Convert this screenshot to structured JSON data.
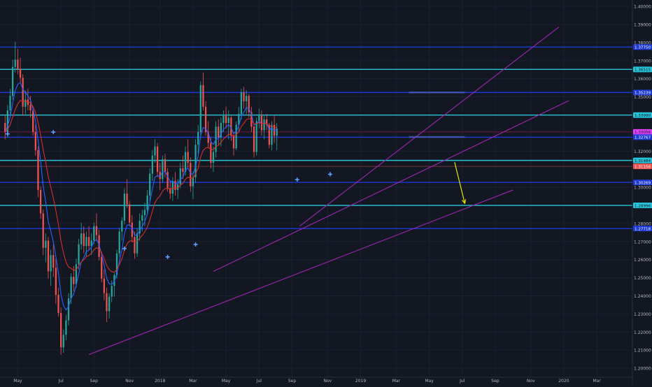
{
  "chart_data": {
    "type": "candlestick",
    "title": "",
    "xlabel": "",
    "ylabel": "",
    "colors": {
      "background": "#131722",
      "up": "#26a69a",
      "down": "#ef5350",
      "ema_fast": "#2962ff",
      "ema_slow": "#d32f2f",
      "support_cyan": "#26c6da",
      "level_blue": "#1e3ad6",
      "trendline": "#9c27b0",
      "arrow": "#e6e600",
      "axis_text": "#b2b5be",
      "label_text": "#131722"
    },
    "ylim": [
      1.195,
      1.4035
    ],
    "y_ticks": [
      "1.20000",
      "1.21000",
      "1.22000",
      "1.23000",
      "1.24000",
      "1.25000",
      "1.26000",
      "1.27000",
      "1.28000",
      "1.29000",
      "1.30000",
      "1.32000",
      "1.34000",
      "1.35000",
      "1.36000",
      "1.37000",
      "1.38000",
      "1.39000",
      "1.40000"
    ],
    "x_tick_labels": [
      "May",
      "Jul",
      "Sep",
      "Nov",
      "2018",
      "Mar",
      "May",
      "Jul",
      "Sep",
      "Nov",
      "2019",
      "Mar",
      "May",
      "Jul",
      "Sep",
      "Nov",
      "2020",
      "Mar"
    ],
    "x_tick_pos": [
      5,
      22,
      35,
      49,
      61,
      74,
      87,
      100,
      113,
      127,
      140,
      154,
      167,
      180,
      193,
      207,
      220,
      233
    ],
    "xlim": [
      -2,
      247
    ],
    "level_labels": [
      {
        "text": "1.37750",
        "value": 1.3775,
        "style": "blue"
      },
      {
        "text": "1.36515",
        "value": 1.36515,
        "style": "cyan"
      },
      {
        "text": "1.35239",
        "value": 1.35239,
        "style": "blue"
      },
      {
        "text": "1.33990",
        "value": 1.3399,
        "style": "cyan"
      },
      {
        "text": "1.33056",
        "value": 1.33056,
        "style": "magenta"
      },
      {
        "text": "1.32767",
        "value": 1.32767,
        "style": "blue"
      },
      {
        "text": "1.31484",
        "value": 1.31484,
        "style": "cyan"
      },
      {
        "text": "1.31156",
        "value": 1.31156,
        "style": "red"
      },
      {
        "text": "1.30269",
        "value": 1.30269,
        "style": "blue"
      },
      {
        "text": "1.28996",
        "value": 1.28996,
        "style": "cyan"
      },
      {
        "text": "1.27718",
        "value": 1.27718,
        "style": "blue"
      }
    ],
    "trendlines": [
      {
        "x1": 33,
        "y1": 1.2075,
        "x2": 200,
        "y2": 1.2985
      },
      {
        "x1": 82,
        "y1": 1.2535,
        "x2": 222,
        "y2": 1.3479
      },
      {
        "x1": 116,
        "y1": 1.2785,
        "x2": 218,
        "y2": 1.3885
      }
    ],
    "rect_zones": [
      {
        "x1": 159,
        "x2": 181,
        "y1": 1.3519,
        "y2": 1.3529
      },
      {
        "x1": 159,
        "x2": 181,
        "y1": 1.3273,
        "y2": 1.3283
      }
    ],
    "arrow": {
      "x1": 177,
      "y1": 1.3138,
      "x2": 181,
      "y2": 1.2911
    },
    "markers": [
      {
        "x": 1,
        "y": 1.3295
      },
      {
        "x": 19,
        "y": 1.3305
      },
      {
        "x": 47,
        "y": 1.2661
      },
      {
        "x": 64,
        "y": 1.2615
      },
      {
        "x": 75,
        "y": 1.2684
      },
      {
        "x": 115,
        "y": 1.3042
      },
      {
        "x": 128,
        "y": 1.3072
      }
    ],
    "ohlc": [
      [
        1.3355,
        1.3395,
        1.3265,
        1.3305
      ],
      [
        1.3305,
        1.3455,
        1.3275,
        1.3425
      ],
      [
        1.3425,
        1.3545,
        1.3405,
        1.3505
      ],
      [
        1.3505,
        1.3705,
        1.3485,
        1.3665
      ],
      [
        1.3665,
        1.3805,
        1.3635,
        1.3705
      ],
      [
        1.3705,
        1.3765,
        1.3625,
        1.3655
      ],
      [
        1.3655,
        1.3715,
        1.3575,
        1.3605
      ],
      [
        1.3605,
        1.3625,
        1.3395,
        1.3445
      ],
      [
        1.3445,
        1.3535,
        1.3405,
        1.3485
      ],
      [
        1.3485,
        1.3545,
        1.3425,
        1.3455
      ],
      [
        1.3455,
        1.3505,
        1.3385,
        1.3425
      ],
      [
        1.3425,
        1.3445,
        1.3285,
        1.3305
      ],
      [
        1.3305,
        1.3345,
        1.3175,
        1.3205
      ],
      [
        1.3205,
        1.3225,
        1.2945,
        1.2985
      ],
      [
        1.2985,
        1.3005,
        1.2825,
        1.2855
      ],
      [
        1.2855,
        1.2875,
        1.2625,
        1.2665
      ],
      [
        1.2665,
        1.2745,
        1.2585,
        1.2705
      ],
      [
        1.2705,
        1.2725,
        1.2495,
        1.2535
      ],
      [
        1.2535,
        1.2655,
        1.2455,
        1.2625
      ],
      [
        1.2625,
        1.2685,
        1.2505,
        1.2555
      ],
      [
        1.2555,
        1.2605,
        1.2355,
        1.2405
      ],
      [
        1.2405,
        1.2445,
        1.2285,
        1.2305
      ],
      [
        1.2305,
        1.2335,
        1.2075,
        1.2115
      ],
      [
        1.2115,
        1.2215,
        1.2085,
        1.2185
      ],
      [
        1.2185,
        1.2295,
        1.2155,
        1.2265
      ],
      [
        1.2265,
        1.2415,
        1.2235,
        1.2385
      ],
      [
        1.2385,
        1.2525,
        1.2355,
        1.2505
      ],
      [
        1.2505,
        1.2565,
        1.2425,
        1.2465
      ],
      [
        1.2465,
        1.2605,
        1.2445,
        1.2575
      ],
      [
        1.2575,
        1.2715,
        1.2545,
        1.2685
      ],
      [
        1.2685,
        1.2805,
        1.2655,
        1.2745
      ],
      [
        1.2745,
        1.2785,
        1.2635,
        1.2675
      ],
      [
        1.2675,
        1.2755,
        1.2615,
        1.2725
      ],
      [
        1.2725,
        1.2785,
        1.2655,
        1.2675
      ],
      [
        1.2675,
        1.2745,
        1.2625,
        1.2705
      ],
      [
        1.2705,
        1.2805,
        1.2685,
        1.2785
      ],
      [
        1.2785,
        1.2855,
        1.2705,
        1.2735
      ],
      [
        1.2735,
        1.2765,
        1.2595,
        1.2615
      ],
      [
        1.2615,
        1.2645,
        1.2475,
        1.2495
      ],
      [
        1.2495,
        1.2545,
        1.2375,
        1.2415
      ],
      [
        1.2415,
        1.2445,
        1.2255,
        1.2315
      ],
      [
        1.2315,
        1.2415,
        1.2275,
        1.2395
      ],
      [
        1.2395,
        1.2485,
        1.2365,
        1.2455
      ],
      [
        1.2455,
        1.2525,
        1.2395,
        1.2515
      ],
      [
        1.2515,
        1.2655,
        1.2495,
        1.2635
      ],
      [
        1.2635,
        1.2775,
        1.2615,
        1.2755
      ],
      [
        1.2755,
        1.2835,
        1.2705,
        1.2815
      ],
      [
        1.2815,
        1.2995,
        1.2795,
        1.2965
      ],
      [
        1.2965,
        1.3045,
        1.2885,
        1.2905
      ],
      [
        1.2905,
        1.2925,
        1.2785,
        1.2805
      ],
      [
        1.2805,
        1.2845,
        1.2695,
        1.2725
      ],
      [
        1.2725,
        1.2755,
        1.2605,
        1.2635
      ],
      [
        1.2635,
        1.2775,
        1.2615,
        1.2745
      ],
      [
        1.2745,
        1.2855,
        1.2705,
        1.2815
      ],
      [
        1.2815,
        1.2875,
        1.2755,
        1.2845
      ],
      [
        1.2845,
        1.2915,
        1.2785,
        1.2875
      ],
      [
        1.2875,
        1.2985,
        1.2845,
        1.2955
      ],
      [
        1.2955,
        1.3105,
        1.2925,
        1.3075
      ],
      [
        1.3075,
        1.3205,
        1.3035,
        1.3175
      ],
      [
        1.3175,
        1.3265,
        1.3135,
        1.3225
      ],
      [
        1.3225,
        1.3245,
        1.3055,
        1.3085
      ],
      [
        1.3085,
        1.3135,
        1.2985,
        1.3045
      ],
      [
        1.3045,
        1.3175,
        1.3025,
        1.3155
      ],
      [
        1.3155,
        1.3185,
        1.3055,
        1.3085
      ],
      [
        1.3085,
        1.3105,
        1.2975,
        1.2995
      ],
      [
        1.2995,
        1.3035,
        1.2935,
        1.2965
      ],
      [
        1.2965,
        1.3055,
        1.2925,
        1.3035
      ],
      [
        1.3035,
        1.3085,
        1.2955,
        1.2985
      ],
      [
        1.2985,
        1.3045,
        1.2935,
        1.3015
      ],
      [
        1.3015,
        1.3135,
        1.2995,
        1.3105
      ],
      [
        1.3105,
        1.3175,
        1.3045,
        1.3085
      ],
      [
        1.3085,
        1.3225,
        1.3065,
        1.3195
      ],
      [
        1.3195,
        1.3265,
        1.3105,
        1.3135
      ],
      [
        1.3135,
        1.3165,
        1.2975,
        1.3005
      ],
      [
        1.3005,
        1.3085,
        1.2935,
        1.3055
      ],
      [
        1.3055,
        1.3265,
        1.3025,
        1.3235
      ],
      [
        1.3235,
        1.3345,
        1.3185,
        1.3305
      ],
      [
        1.3305,
        1.3585,
        1.3275,
        1.3565
      ],
      [
        1.3565,
        1.3635,
        1.3425,
        1.3445
      ],
      [
        1.3445,
        1.3475,
        1.3285,
        1.3305
      ],
      [
        1.3305,
        1.3365,
        1.3215,
        1.3245
      ],
      [
        1.3245,
        1.3275,
        1.3105,
        1.3135
      ],
      [
        1.3135,
        1.3225,
        1.3085,
        1.3195
      ],
      [
        1.3195,
        1.3365,
        1.3165,
        1.3335
      ],
      [
        1.3335,
        1.3375,
        1.3235,
        1.3275
      ],
      [
        1.3275,
        1.3385,
        1.3225,
        1.3355
      ],
      [
        1.3355,
        1.3425,
        1.3305,
        1.3395
      ],
      [
        1.3395,
        1.3445,
        1.3325,
        1.3355
      ],
      [
        1.3355,
        1.3425,
        1.3265,
        1.3385
      ],
      [
        1.3385,
        1.3395,
        1.3255,
        1.3285
      ],
      [
        1.3285,
        1.3305,
        1.3175,
        1.3215
      ],
      [
        1.3215,
        1.3365,
        1.3205,
        1.3345
      ],
      [
        1.3345,
        1.3445,
        1.3305,
        1.3405
      ],
      [
        1.3405,
        1.3545,
        1.3375,
        1.3525
      ],
      [
        1.3525,
        1.3555,
        1.3435,
        1.3475
      ],
      [
        1.3475,
        1.3535,
        1.3405,
        1.3505
      ],
      [
        1.3505,
        1.3515,
        1.3385,
        1.3415
      ],
      [
        1.3415,
        1.3445,
        1.3305,
        1.3335
      ],
      [
        1.3335,
        1.3345,
        1.3165,
        1.3195
      ],
      [
        1.3195,
        1.3385,
        1.3175,
        1.3365
      ],
      [
        1.3365,
        1.3435,
        1.3325,
        1.3395
      ],
      [
        1.3395,
        1.3425,
        1.3285,
        1.3315
      ],
      [
        1.3315,
        1.3395,
        1.3265,
        1.3375
      ],
      [
        1.3375,
        1.3405,
        1.3315,
        1.3345
      ],
      [
        1.3345,
        1.3355,
        1.3215,
        1.3235
      ],
      [
        1.3235,
        1.3365,
        1.3205,
        1.3345
      ],
      [
        1.3345,
        1.3395,
        1.3245,
        1.3285
      ],
      [
        1.3285,
        1.3355,
        1.3205,
        1.3325
      ]
    ]
  }
}
